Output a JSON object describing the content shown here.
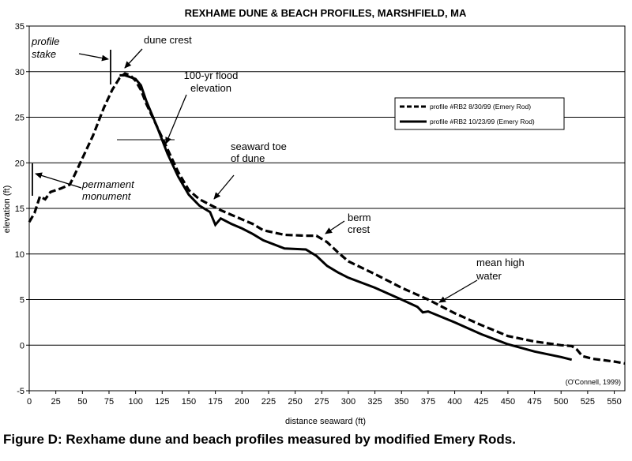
{
  "chart_data": {
    "type": "line",
    "title": "REXHAME DUNE & BEACH PROFILES, MARSHFIELD, MA",
    "xlabel": "distance seaward (ft)",
    "ylabel": "elevation (ft)",
    "xlim": [
      0,
      560
    ],
    "ylim": [
      -5,
      35
    ],
    "xticks": [
      0,
      25,
      50,
      75,
      100,
      125,
      150,
      175,
      200,
      225,
      250,
      275,
      300,
      325,
      350,
      375,
      400,
      425,
      450,
      475,
      500,
      525,
      550
    ],
    "yticks": [
      -5,
      0,
      5,
      10,
      15,
      20,
      25,
      30,
      35
    ],
    "grid": "horizontal",
    "legend_position": "right",
    "series": [
      {
        "name": "profile #RB2   8/30/99   (Emery Rod)",
        "style": "dashed",
        "points": [
          [
            0,
            13.5
          ],
          [
            5,
            14.5
          ],
          [
            10,
            16.3
          ],
          [
            15,
            16.0
          ],
          [
            20,
            16.8
          ],
          [
            30,
            17.2
          ],
          [
            38,
            17.6
          ],
          [
            42,
            18.5
          ],
          [
            50,
            20.5
          ],
          [
            60,
            23.0
          ],
          [
            70,
            26.0
          ],
          [
            78,
            28.0
          ],
          [
            85,
            29.3
          ],
          [
            90,
            29.8
          ],
          [
            95,
            29.6
          ],
          [
            100,
            29.0
          ],
          [
            105,
            28.0
          ],
          [
            110,
            26.5
          ],
          [
            120,
            24.0
          ],
          [
            130,
            21.5
          ],
          [
            140,
            19.0
          ],
          [
            150,
            17.0
          ],
          [
            160,
            16.0
          ],
          [
            170,
            15.4
          ],
          [
            180,
            14.8
          ],
          [
            190,
            14.3
          ],
          [
            200,
            13.8
          ],
          [
            210,
            13.3
          ],
          [
            220,
            12.6
          ],
          [
            240,
            12.1
          ],
          [
            260,
            12.0
          ],
          [
            270,
            12.0
          ],
          [
            280,
            11.3
          ],
          [
            290,
            10.2
          ],
          [
            300,
            9.2
          ],
          [
            325,
            7.8
          ],
          [
            350,
            6.3
          ],
          [
            375,
            5.0
          ],
          [
            400,
            3.5
          ],
          [
            425,
            2.2
          ],
          [
            450,
            1.0
          ],
          [
            475,
            0.4
          ],
          [
            500,
            0.0
          ],
          [
            510,
            -0.1
          ],
          [
            515,
            -0.5
          ],
          [
            520,
            -1.2
          ],
          [
            530,
            -1.5
          ],
          [
            550,
            -1.8
          ],
          [
            560,
            -2.0
          ]
        ]
      },
      {
        "name": "profile #RB2   10/23/99   (Emery Rod)",
        "style": "solid",
        "points": [
          [
            85,
            29.6
          ],
          [
            90,
            29.6
          ],
          [
            95,
            29.4
          ],
          [
            100,
            29.2
          ],
          [
            105,
            28.5
          ],
          [
            110,
            26.8
          ],
          [
            120,
            24.0
          ],
          [
            130,
            21.0
          ],
          [
            140,
            18.5
          ],
          [
            150,
            16.5
          ],
          [
            160,
            15.3
          ],
          [
            170,
            14.6
          ],
          [
            175,
            13.2
          ],
          [
            180,
            13.9
          ],
          [
            190,
            13.3
          ],
          [
            200,
            12.8
          ],
          [
            210,
            12.2
          ],
          [
            220,
            11.5
          ],
          [
            240,
            10.6
          ],
          [
            260,
            10.5
          ],
          [
            270,
            9.8
          ],
          [
            280,
            8.7
          ],
          [
            290,
            8.0
          ],
          [
            300,
            7.4
          ],
          [
            325,
            6.3
          ],
          [
            350,
            5.0
          ],
          [
            365,
            4.2
          ],
          [
            370,
            3.6
          ],
          [
            375,
            3.7
          ],
          [
            400,
            2.5
          ],
          [
            425,
            1.2
          ],
          [
            450,
            0.1
          ],
          [
            475,
            -0.7
          ],
          [
            500,
            -1.3
          ],
          [
            510,
            -1.6
          ]
        ]
      }
    ],
    "annotations": {
      "dune_crest": "dune crest",
      "profile_stake": [
        "profile",
        "stake"
      ],
      "flood_elevation": [
        "100-yr flood",
        "elevation"
      ],
      "seaward_toe": [
        "seaward toe",
        "of dune"
      ],
      "permanent_monument": [
        "permament",
        "monument"
      ],
      "berm_crest": [
        "berm",
        "crest"
      ],
      "mean_high_water": [
        "mean high",
        "water"
      ]
    },
    "credit": "(O'Connell, 1999)"
  },
  "caption": "Figure D: Rexhame dune and beach profiles measured by modified Emery Rods."
}
